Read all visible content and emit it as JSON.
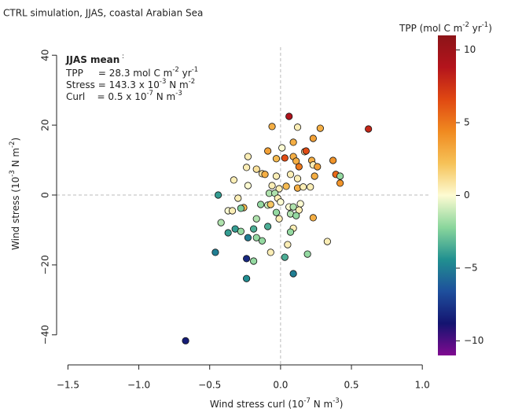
{
  "chart_data": {
    "type": "scatter",
    "title": "CTRL simulation, JJAS, coastal Arabian Sea",
    "xlabel": [
      "Wind stress curl (10",
      "-7",
      " N m",
      "-3",
      ")"
    ],
    "ylabel": [
      "Wind stress (10",
      "-3",
      " N m",
      "-2",
      ")"
    ],
    "colorbar_label": [
      "TPP (mol C m",
      "-2",
      " yr",
      "-1",
      ")"
    ],
    "annotation_title": [
      "JJAS mean",
      " :"
    ],
    "annotation_lines": [
      [
        "TPP     = 28.3 mol C m",
        "-2",
        " yr",
        "-1"
      ],
      [
        "Stress = 143.3 x 10",
        "-3",
        " N m",
        "-2"
      ],
      [
        "Curl    = 0.5 x 10",
        "-7",
        " N m",
        "-3"
      ]
    ],
    "xlim": [
      -1.58,
      1.06
    ],
    "ylim": [
      -48.6,
      42.3
    ],
    "clim": [
      -11,
      11
    ],
    "xticks": [
      {
        "value": -1.5,
        "label": "−1.5"
      },
      {
        "value": -1,
        "label": "−1.0"
      },
      {
        "value": -0.5,
        "label": "−0.5"
      },
      {
        "value": 0,
        "label": "0.0"
      },
      0.5,
      {
        "value": 1,
        "label": "1.0"
      }
    ],
    "yticks": [
      {
        "value": -40,
        "label": "−40"
      },
      {
        "value": -20,
        "label": "−20"
      },
      0,
      20,
      40
    ],
    "cticks": [
      {
        "value": -10,
        "label": "−10"
      },
      {
        "value": -5,
        "label": "−5"
      },
      0,
      5,
      10
    ],
    "colorscale": [
      "#800a90",
      "#141470",
      "#1e4f9c",
      "#219090",
      "#8ad69c",
      "#fdfbd2",
      "#f6c258",
      "#f08a20",
      "#e04812",
      "#b4141c",
      "#8c1418"
    ],
    "zero_lines": true,
    "x": [
      0.06,
      0.62,
      -0.06,
      0.12,
      0.28,
      0.23,
      0.09,
      0.01,
      -0.09,
      0.17,
      0.18,
      -0.23,
      0.09,
      -0.03,
      0.03,
      0.11,
      0.22,
      0.37,
      0.13,
      0.23,
      0.26,
      -0.24,
      -0.17,
      -0.13,
      -0.11,
      -0.03,
      0.39,
      0.42,
      0.24,
      0.07,
      0.12,
      0.42,
      -0.33,
      -0.23,
      -0.06,
      -0.01,
      0.04,
      0.12,
      0.16,
      0.21,
      -0.08,
      -0.04,
      -0.44,
      -0.02,
      0,
      -0.3,
      -0.14,
      -0.09,
      -0.07,
      0.14,
      0.06,
      0.09,
      -0.26,
      -0.37,
      -0.34,
      -0.28,
      -0.03,
      0.13,
      0.07,
      0.23,
      0.11,
      -0.01,
      -0.17,
      -0.42,
      -0.09,
      0.09,
      -0.32,
      -0.19,
      -0.28,
      0.07,
      -0.37,
      -0.17,
      -0.13,
      0.33,
      -0.23,
      0.05,
      -0.46,
      -0.07,
      0.19,
      0.03,
      -0.24,
      -0.19,
      0.09,
      -0.24,
      -0.67
    ],
    "y": [
      22.5,
      18.9,
      19.6,
      19.4,
      19.1,
      16.2,
      15.1,
      13.5,
      12.6,
      12.4,
      12.6,
      11,
      11,
      10.4,
      10.6,
      9.7,
      9.9,
      9.9,
      8.1,
      8.6,
      8.1,
      7.9,
      7.4,
      6.1,
      5.9,
      5.4,
      5.9,
      5.4,
      5.4,
      5.9,
      4.7,
      3.4,
      4.3,
      2.7,
      2.7,
      1.8,
      2.5,
      2,
      2.3,
      2.3,
      0.5,
      0.5,
      0,
      -0.9,
      -2,
      -0.9,
      -2.7,
      -2.9,
      -2.7,
      -2.5,
      -3.4,
      -3.4,
      -3.6,
      -4.5,
      -4.5,
      -3.8,
      -5,
      -4.3,
      -5.4,
      -6.5,
      -5.9,
      -6.8,
      -6.8,
      -7.9,
      -9,
      -9.5,
      -9.7,
      -9.7,
      -10.4,
      -10.6,
      -10.8,
      -12.2,
      -13.1,
      -13.3,
      -12.2,
      -14.2,
      -16.4,
      -16.4,
      -16.9,
      -17.8,
      -18.2,
      -18.9,
      -22.5,
      -23.9,
      -41.7
    ],
    "c": [
      9,
      8,
      3,
      0.5,
      3,
      3.5,
      3,
      0,
      3.5,
      0.5,
      6.5,
      0.5,
      3,
      2.5,
      6.5,
      3,
      3,
      4,
      5,
      0.5,
      3.5,
      0.5,
      1,
      1,
      3,
      0.5,
      5.5,
      -2,
      3,
      0.5,
      0.5,
      4,
      0.5,
      0,
      0.5,
      0.5,
      2.5,
      3,
      0.5,
      0.5,
      -1.5,
      -1.5,
      -4,
      0.5,
      0,
      0.5,
      -2,
      -1,
      2,
      0,
      0,
      -1.5,
      2.5,
      0,
      0.5,
      -2.5,
      -2,
      0.5,
      -1.5,
      3,
      -2,
      0.5,
      -1.5,
      -1.5,
      -3.5,
      0.5,
      -4,
      -3.5,
      -2,
      -2,
      -4,
      -2,
      -2,
      0.5,
      -5,
      0.5,
      -5,
      0.5,
      -2,
      -3.5,
      -8,
      -2,
      -5,
      -4.5,
      -8.5
    ]
  }
}
